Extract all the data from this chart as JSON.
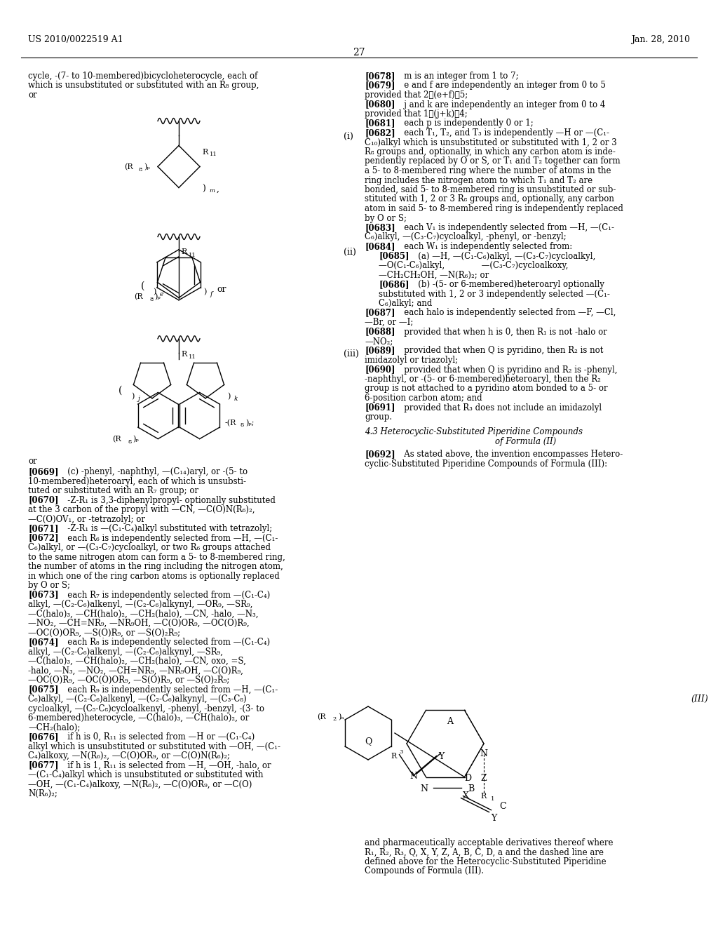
{
  "page_number": "27",
  "header_left": "US 2010/0022519 A1",
  "header_right": "Jan. 28, 2010",
  "background_color": "#ffffff",
  "text_color": "#000000"
}
